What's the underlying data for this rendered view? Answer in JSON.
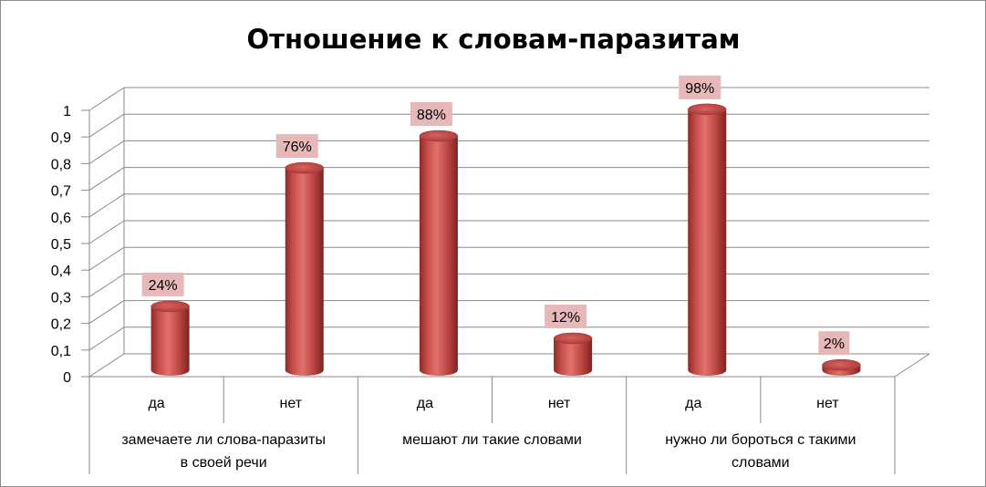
{
  "chart_data": {
    "type": "bar",
    "title": "Отношение к словам-паразитам",
    "y_ticks": [
      "0",
      "0,1",
      "0,2",
      "0,3",
      "0,4",
      "0,5",
      "0,6",
      "0,7",
      "0,8",
      "0,9",
      "1"
    ],
    "ylim": [
      0,
      1
    ],
    "grid": true,
    "legend": "none",
    "bar_color": "#c0504d",
    "label_bg_color": "#e6b9b8",
    "groups": [
      {
        "label_lines": [
          "замечаете ли слова-паразиты",
          "в своей речи"
        ],
        "bars": [
          {
            "category": "да",
            "value": 0.24,
            "data_label": "24%"
          },
          {
            "category": "нет",
            "value": 0.76,
            "data_label": "76%"
          }
        ]
      },
      {
        "label_lines": [
          "мешают  ли такие словами"
        ],
        "bars": [
          {
            "category": "да",
            "value": 0.88,
            "data_label": "88%"
          },
          {
            "category": "нет",
            "value": 0.12,
            "data_label": "12%"
          }
        ]
      },
      {
        "label_lines": [
          "нужно ли бороться с такими",
          "словами"
        ],
        "bars": [
          {
            "category": "да",
            "value": 0.98,
            "data_label": "98%"
          },
          {
            "category": "нет",
            "value": 0.02,
            "data_label": "2%"
          }
        ]
      }
    ]
  }
}
